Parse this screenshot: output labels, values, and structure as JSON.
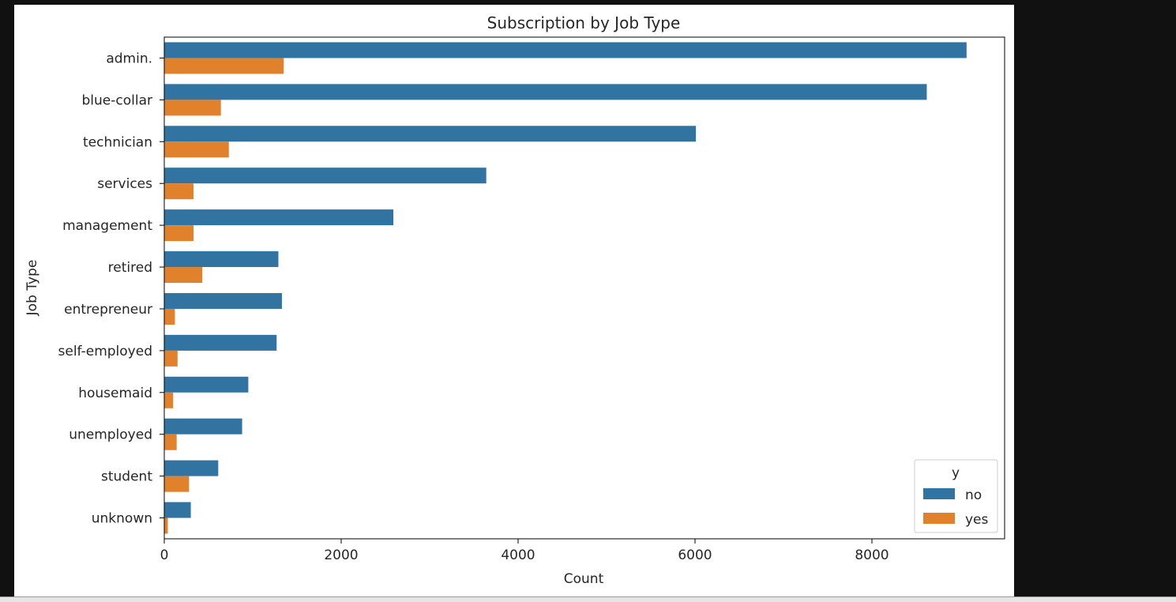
{
  "chart_data": {
    "type": "bar",
    "orientation": "horizontal",
    "title": "Subscription by Job Type",
    "xlabel": "Count",
    "ylabel": "Job Type",
    "xlim": [
      0,
      9500
    ],
    "xticks": [
      0,
      2000,
      4000,
      6000,
      8000
    ],
    "categories": [
      "admin.",
      "blue-collar",
      "technician",
      "services",
      "management",
      "retired",
      "entrepreneur",
      "self-employed",
      "housemaid",
      "unemployed",
      "student",
      "unknown"
    ],
    "series": [
      {
        "name": "no",
        "color": "#3274a1",
        "values": [
          9070,
          8620,
          6010,
          3640,
          2590,
          1290,
          1330,
          1270,
          950,
          880,
          610,
          300
        ]
      },
      {
        "name": "yes",
        "color": "#e1812c",
        "values": [
          1350,
          640,
          730,
          330,
          330,
          430,
          120,
          150,
          100,
          140,
          280,
          40
        ]
      }
    ],
    "legend": {
      "title": "y",
      "position": "lower-right"
    },
    "grid": false
  }
}
